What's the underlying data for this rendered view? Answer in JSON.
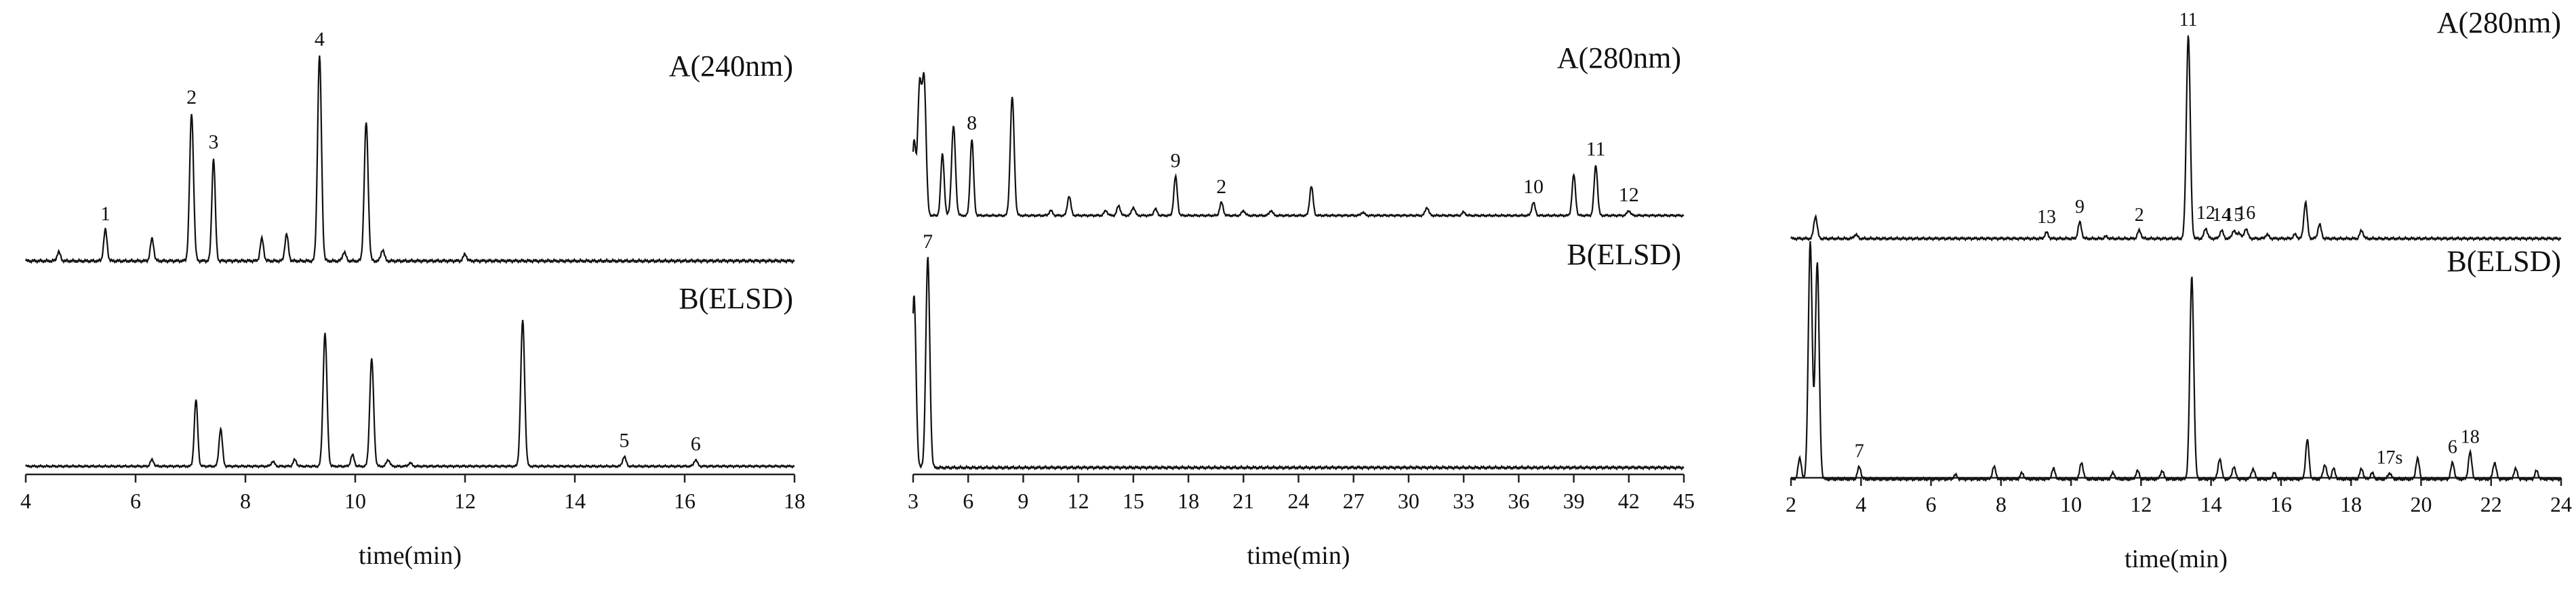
{
  "chart_data": [
    {
      "type": "line",
      "xlabel": "time(min)",
      "xlim": [
        4,
        18
      ],
      "ticks": [
        "4",
        "6",
        "8",
        "10",
        "12",
        "14",
        "16",
        "18"
      ],
      "series": [
        {
          "name": "A(240nm)",
          "offset": "top",
          "baseline_noise": [
            [
              4.6,
              0.04
            ],
            [
              5.45,
              0.07
            ],
            [
              6.3,
              0.1
            ],
            [
              8.3,
              0.1
            ],
            [
              8.75,
              0.12
            ],
            [
              9.8,
              0.04
            ],
            [
              10.5,
              0.05
            ],
            [
              12.0,
              0.03
            ]
          ],
          "peaks": [
            {
              "label": "1",
              "x": 5.45,
              "y": 0.07
            },
            {
              "label": "2",
              "x": 7.02,
              "y": 0.66
            },
            {
              "label": "3",
              "x": 7.42,
              "y": 0.46
            },
            {
              "label": "4",
              "x": 9.35,
              "y": 0.92
            },
            {
              "label": "",
              "x": 10.2,
              "y": 0.62
            }
          ]
        },
        {
          "name": "B(ELSD)",
          "offset": "bottom",
          "baseline_noise": [
            [
              6.3,
              0.04
            ],
            [
              8.5,
              0.03
            ],
            [
              8.9,
              0.04
            ],
            [
              9.95,
              0.07
            ],
            [
              10.6,
              0.04
            ],
            [
              11.0,
              0.02
            ]
          ],
          "peaks": [
            {
              "label": "",
              "x": 7.1,
              "y": 0.41
            },
            {
              "label": "",
              "x": 7.55,
              "y": 0.23
            },
            {
              "label": "",
              "x": 9.45,
              "y": 0.82
            },
            {
              "label": "",
              "x": 10.3,
              "y": 0.66
            },
            {
              "label": "",
              "x": 13.05,
              "y": 0.9
            },
            {
              "label": "5",
              "x": 14.9,
              "y": 0.06
            },
            {
              "label": "6",
              "x": 16.2,
              "y": 0.04
            }
          ]
        }
      ]
    },
    {
      "type": "line",
      "xlabel": "time(min)",
      "xlim": [
        3,
        45
      ],
      "ticks": [
        "3",
        "6",
        "9",
        "12",
        "15",
        "18",
        "21",
        "24",
        "27",
        "30",
        "33",
        "36",
        "39",
        "42",
        "45"
      ],
      "series": [
        {
          "name": "A(280nm)",
          "offset": "top",
          "baseline_noise": [
            [
              10.5,
              0.03
            ],
            [
              13.5,
              0.03
            ],
            [
              14.2,
              0.06
            ],
            [
              15.0,
              0.05
            ],
            [
              16.2,
              0.04
            ],
            [
              21.0,
              0.03
            ],
            [
              22.5,
              0.03
            ],
            [
              27.5,
              0.02
            ],
            [
              33.0,
              0.02
            ],
            [
              36.8,
              0.04
            ]
          ],
          "peaks": [
            {
              "label": "",
              "x": 3.05,
              "y": 0.45
            },
            {
              "label": "",
              "x": 3.35,
              "y": 0.78
            },
            {
              "label": "",
              "x": 3.6,
              "y": 0.82
            },
            {
              "label": "",
              "x": 4.6,
              "y": 0.38
            },
            {
              "label": "",
              "x": 5.2,
              "y": 0.55
            },
            {
              "label": "8",
              "x": 6.2,
              "y": 0.47
            },
            {
              "label": "",
              "x": 8.4,
              "y": 0.73
            },
            {
              "label": "",
              "x": 11.5,
              "y": 0.12
            },
            {
              "label": "9",
              "x": 17.3,
              "y": 0.24
            },
            {
              "label": "2",
              "x": 19.8,
              "y": 0.08
            },
            {
              "label": "",
              "x": 24.7,
              "y": 0.18
            },
            {
              "label": "",
              "x": 31.0,
              "y": 0.05
            },
            {
              "label": "10",
              "x": 36.8,
              "y": 0.04
            },
            {
              "label": "",
              "x": 39.0,
              "y": 0.25
            },
            {
              "label": "11",
              "x": 40.2,
              "y": 0.31
            },
            {
              "label": "12",
              "x": 42.0,
              "y": 0.03
            }
          ]
        },
        {
          "name": "B(ELSD)",
          "offset": "bottom",
          "baseline_noise": [],
          "peaks": [
            {
              "label": "",
              "x": 3.05,
              "y": 0.82
            },
            {
              "label": "7",
              "x": 3.8,
              "y": 1.0
            }
          ]
        }
      ]
    },
    {
      "type": "line",
      "xlabel": "time(min)",
      "xlim": [
        2,
        24
      ],
      "ticks": [
        "2",
        "4",
        "6",
        "8",
        "10",
        "12",
        "14",
        "16",
        "18",
        "20",
        "22",
        "24"
      ],
      "series": [
        {
          "name": "A(280nm)",
          "offset": "top",
          "baseline_noise": [
            [
              3.85,
              0.02
            ],
            [
              11.0,
              0.01
            ],
            [
              14.8,
              0.03
            ],
            [
              15.6,
              0.02
            ],
            [
              16.4,
              0.02
            ]
          ],
          "peaks": [
            {
              "label": "",
              "x": 2.7,
              "y": 0.11
            },
            {
              "label": "13",
              "x": 9.3,
              "y": 0.03
            },
            {
              "label": "9",
              "x": 10.25,
              "y": 0.08
            },
            {
              "label": "2",
              "x": 11.95,
              "y": 0.04
            },
            {
              "label": "11",
              "x": 13.35,
              "y": 1.0
            },
            {
              "label": "12",
              "x": 13.85,
              "y": 0.05
            },
            {
              "label": "14",
              "x": 14.3,
              "y": 0.04
            },
            {
              "label": "15",
              "x": 14.65,
              "y": 0.04
            },
            {
              "label": "16",
              "x": 15.0,
              "y": 0.05
            },
            {
              "label": "",
              "x": 16.7,
              "y": 0.18
            },
            {
              "label": "",
              "x": 17.1,
              "y": 0.07
            },
            {
              "label": "",
              "x": 18.3,
              "y": 0.04
            }
          ]
        },
        {
          "name": "B(ELSD)",
          "offset": "bottom",
          "baseline_noise": [
            [
              6.7,
              0.02
            ],
            [
              7.8,
              0.06
            ],
            [
              8.6,
              0.03
            ],
            [
              9.5,
              0.05
            ],
            [
              11.2,
              0.03
            ],
            [
              11.9,
              0.04
            ],
            [
              12.6,
              0.04
            ],
            [
              15.8,
              0.03
            ],
            [
              17.5,
              0.05
            ],
            [
              18.3,
              0.05
            ],
            [
              18.6,
              0.03
            ]
          ],
          "peaks": [
            {
              "label": "",
              "x": 2.25,
              "y": 0.1
            },
            {
              "label": "",
              "x": 2.55,
              "y": 1.15
            },
            {
              "label": "",
              "x": 2.75,
              "y": 1.05
            },
            {
              "label": "7",
              "x": 3.95,
              "y": 0.06
            },
            {
              "label": "",
              "x": 10.3,
              "y": 0.08
            },
            {
              "label": "",
              "x": 13.45,
              "y": 0.98
            },
            {
              "label": "",
              "x": 14.25,
              "y": 0.1
            },
            {
              "label": "",
              "x": 14.65,
              "y": 0.06
            },
            {
              "label": "",
              "x": 15.2,
              "y": 0.05
            },
            {
              "label": "",
              "x": 16.75,
              "y": 0.19
            },
            {
              "label": "",
              "x": 17.25,
              "y": 0.07
            },
            {
              "label": "17s",
              "x": 19.1,
              "y": 0.03
            },
            {
              "label": "",
              "x": 19.9,
              "y": 0.1
            },
            {
              "label": "6",
              "x": 20.9,
              "y": 0.08
            },
            {
              "label": "18",
              "x": 21.4,
              "y": 0.13
            },
            {
              "label": "",
              "x": 22.1,
              "y": 0.08
            },
            {
              "label": "",
              "x": 22.7,
              "y": 0.05
            },
            {
              "label": "",
              "x": 23.3,
              "y": 0.04
            }
          ]
        }
      ]
    }
  ]
}
